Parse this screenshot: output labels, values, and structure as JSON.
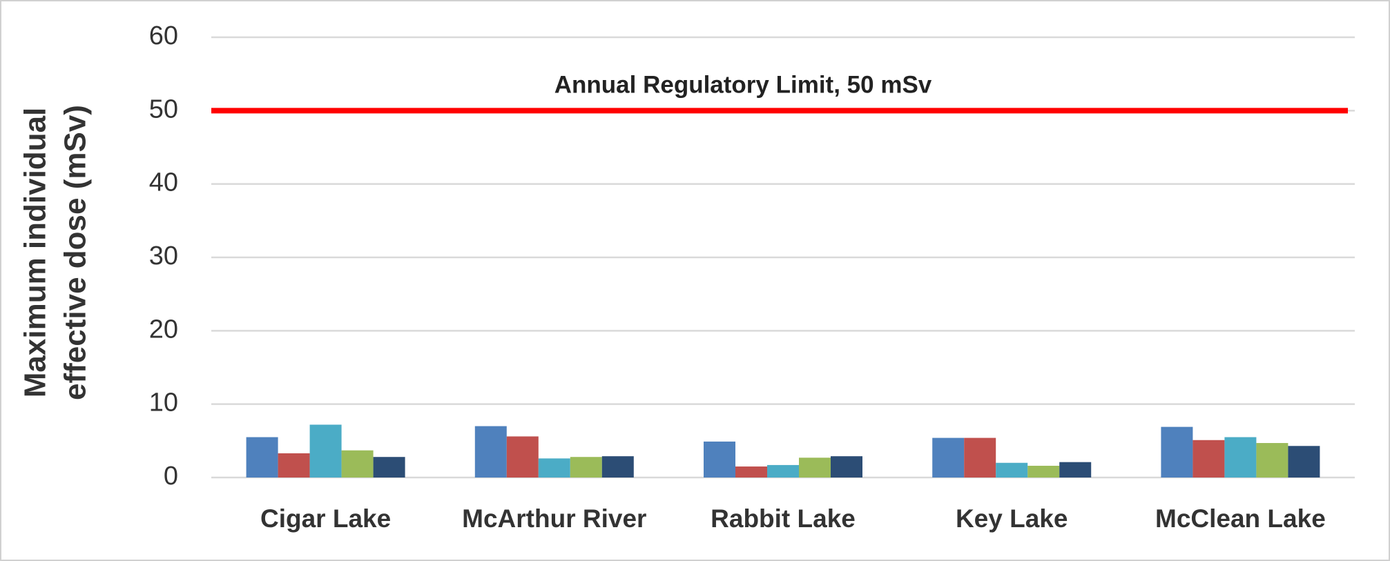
{
  "chart_data": {
    "type": "bar",
    "ylabel": [
      "Maximum individual",
      "effective dose  (mSv)"
    ],
    "categories": [
      "Cigar Lake",
      "McArthur River",
      "Rabbit Lake",
      "Key Lake",
      "McClean Lake"
    ],
    "series": [
      {
        "color": "#4f81bd",
        "values": [
          5.5,
          7.0,
          4.9,
          5.4,
          6.9
        ]
      },
      {
        "color": "#c0504d",
        "values": [
          3.3,
          5.6,
          1.5,
          5.4,
          5.1
        ]
      },
      {
        "color": "#4bacc6",
        "values": [
          7.2,
          2.6,
          1.7,
          2.0,
          5.5
        ]
      },
      {
        "color": "#9bbb59",
        "values": [
          3.7,
          2.8,
          2.7,
          1.6,
          4.7
        ]
      },
      {
        "color": "#2c4d75",
        "values": [
          2.8,
          2.9,
          2.9,
          2.1,
          4.3
        ]
      }
    ],
    "ylim": [
      0,
      60
    ],
    "yticks": [
      0,
      10,
      20,
      30,
      40,
      50,
      60
    ],
    "grid": true,
    "reference_line": {
      "value": 50,
      "label": "Annual Regulatory Limit, 50 mSv",
      "color": "#ff0000"
    }
  }
}
